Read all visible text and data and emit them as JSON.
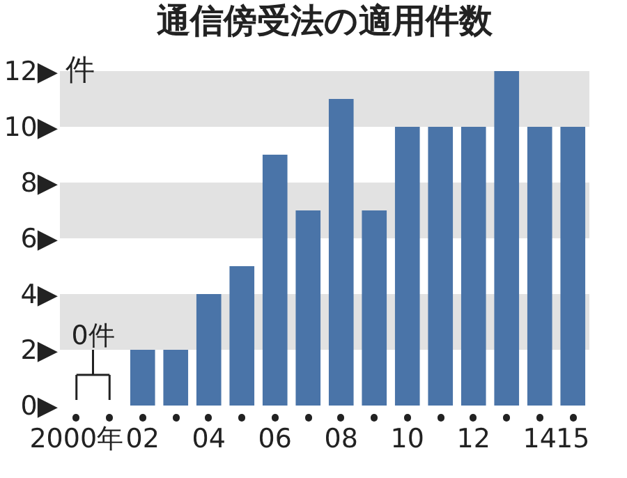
{
  "chart_data": {
    "type": "bar",
    "title": "通信傍受法の適用件数",
    "ylabel": "件",
    "categories": [
      "2000年",
      null,
      "02",
      null,
      "04",
      null,
      "06",
      null,
      "08",
      null,
      "10",
      null,
      "12",
      null,
      "14",
      "15"
    ],
    "values": [
      0,
      0,
      2,
      2,
      4,
      5,
      9,
      7,
      11,
      7,
      10,
      10,
      10,
      12,
      10,
      10
    ],
    "color": "#4a74a8",
    "ylim": [
      0,
      12
    ],
    "yticks": [
      {
        "value": 0,
        "label": "0▶"
      },
      {
        "value": 2,
        "label": "2▶"
      },
      {
        "value": 4,
        "label": "4▶"
      },
      {
        "value": 6,
        "label": "6▶"
      },
      {
        "value": 8,
        "label": "8▶"
      },
      {
        "value": 10,
        "label": "10▶"
      },
      {
        "value": 12,
        "label": "12▶"
      }
    ],
    "bands": [
      {
        "axis": "y",
        "from": 2,
        "to": 4,
        "color": "#e2e2e2"
      },
      {
        "axis": "y",
        "from": 6,
        "to": 8,
        "color": "#e2e2e2"
      },
      {
        "axis": "y",
        "from": 10,
        "to": 12,
        "color": "#e2e2e2"
      }
    ],
    "annotations": [
      {
        "text": "0件",
        "x": "2000年",
        "y": 0
      }
    ]
  }
}
